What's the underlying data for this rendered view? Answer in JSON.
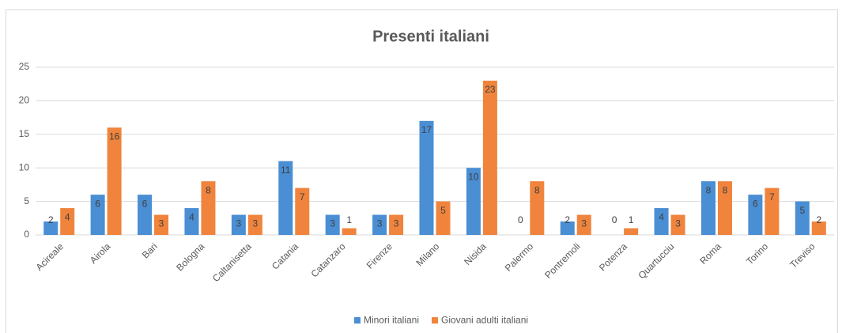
{
  "chart_data": {
    "type": "bar",
    "title": "Presenti italiani",
    "categories": [
      "Acireale",
      "Airola",
      "Bari",
      "Bologna",
      "Caltanisetta",
      "Catania",
      "Catanzaro",
      "Firenze",
      "Milano",
      "Nisida",
      "Palermo",
      "Pontremoli",
      "Potenza",
      "Quartucciu",
      "Roma",
      "Torino",
      "Treviso"
    ],
    "series": [
      {
        "name": "Minori italiani",
        "color": "#4a8ed4",
        "values": [
          2,
          6,
          6,
          4,
          3,
          11,
          3,
          3,
          17,
          10,
          0,
          2,
          0,
          4,
          8,
          6,
          5
        ]
      },
      {
        "name": "Giovani adulti italiani",
        "color": "#f0843d",
        "values": [
          4,
          16,
          3,
          8,
          3,
          7,
          1,
          3,
          5,
          23,
          8,
          3,
          1,
          3,
          8,
          7,
          2
        ]
      }
    ],
    "ylim": [
      0,
      25
    ],
    "yticks": [
      0,
      5,
      10,
      15,
      20,
      25
    ],
    "grid": true,
    "legend": "bottom"
  }
}
